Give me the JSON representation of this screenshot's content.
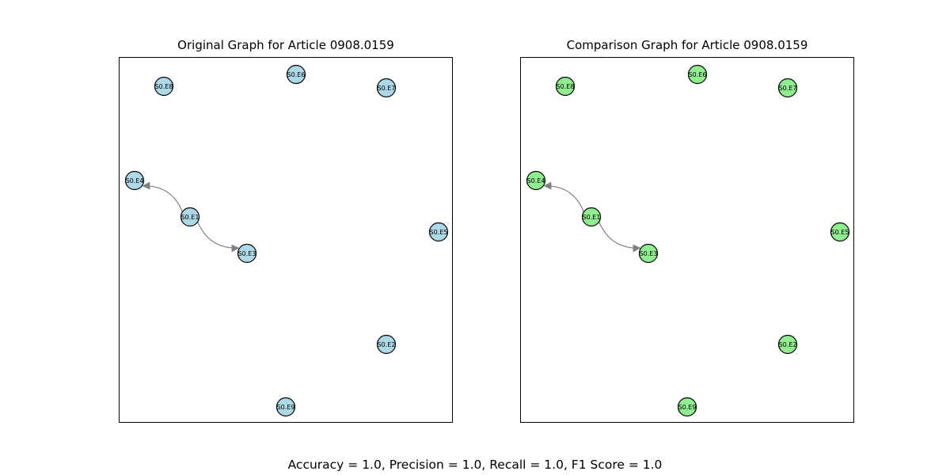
{
  "panels": [
    {
      "title": "Original Graph for Article 0908.0159",
      "node_color": "#add8e6",
      "nodes": [
        {
          "id": "S0.E8",
          "label": "S0.E8"
        },
        {
          "id": "S0.E6",
          "label": "S0.E6"
        },
        {
          "id": "S0.E7",
          "label": "S0.E7"
        },
        {
          "id": "S0.E4",
          "label": "S0.E4"
        },
        {
          "id": "S0.E1",
          "label": "S0.E1"
        },
        {
          "id": "S0.E5",
          "label": "S0.E5"
        },
        {
          "id": "S0.E3",
          "label": "S0.E3"
        },
        {
          "id": "S0.E2",
          "label": "S0.E2"
        },
        {
          "id": "S0.E9",
          "label": "S0.E9"
        }
      ],
      "edges": [
        {
          "from": "S0.E1",
          "to": "S0.E4"
        },
        {
          "from": "S0.E1",
          "to": "S0.E3"
        }
      ]
    },
    {
      "title": "Comparison Graph for Article 0908.0159",
      "node_color": "#90ee90",
      "nodes": [
        {
          "id": "S0.E8",
          "label": "S0.E8"
        },
        {
          "id": "S0.E6",
          "label": "S0.E6"
        },
        {
          "id": "S0.E7",
          "label": "S0.E7"
        },
        {
          "id": "S0.E4",
          "label": "S0.E4"
        },
        {
          "id": "S0.E1",
          "label": "S0.E1"
        },
        {
          "id": "S0.E5",
          "label": "S0.E5"
        },
        {
          "id": "S0.E3",
          "label": "S0.E3"
        },
        {
          "id": "S0.E2",
          "label": "S0.E2"
        },
        {
          "id": "S0.E9",
          "label": "S0.E9"
        }
      ],
      "edges": [
        {
          "from": "S0.E1",
          "to": "S0.E4"
        },
        {
          "from": "S0.E1",
          "to": "S0.E3"
        }
      ]
    }
  ],
  "metrics_text": "Accuracy = 1.0, Precision = 1.0, Recall = 1.0, F1 Score = 1.0",
  "edge_color": "#808080"
}
